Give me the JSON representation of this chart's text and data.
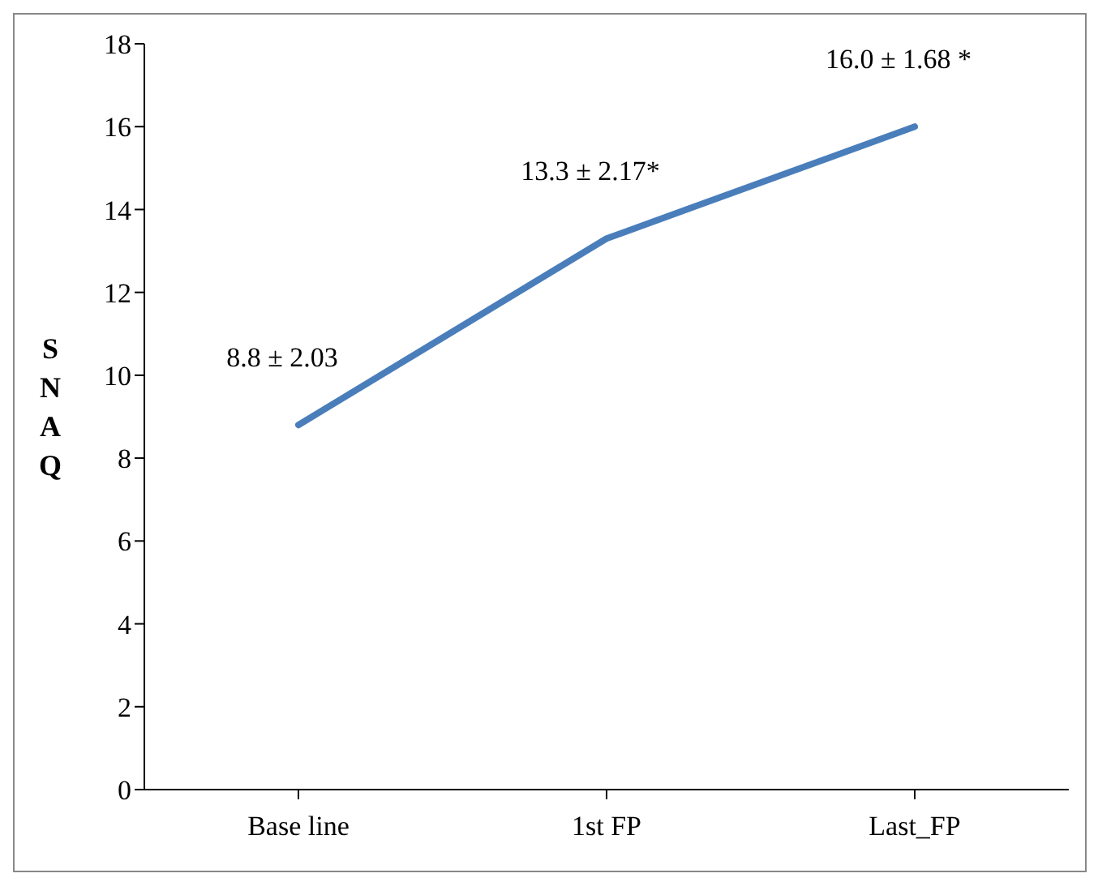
{
  "chart_data": {
    "type": "line",
    "ylabel": "SNAQ",
    "categories": [
      "Base line",
      "1st FP",
      "Last_FP"
    ],
    "series": [
      {
        "color": "#4a7ebb",
        "values": [
          8.8,
          13.3,
          16.0
        ],
        "value_labels": [
          "8.8 ± 2.03",
          "13.3 ± 2.17*",
          "16.0 ± 1.68 *"
        ]
      }
    ],
    "ylim": [
      0,
      18
    ],
    "yticks": [
      0,
      2,
      4,
      6,
      8,
      10,
      12,
      14,
      16,
      18
    ],
    "grid": false,
    "legend": false,
    "marker": "none",
    "line_style": "solid"
  }
}
